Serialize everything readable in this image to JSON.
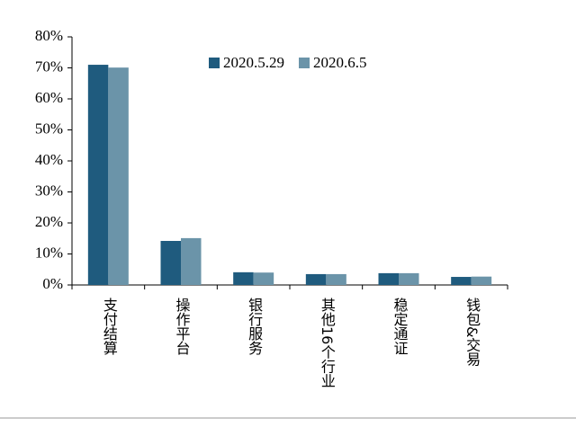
{
  "chart_data": {
    "type": "bar",
    "categories": [
      "支付结算",
      "操作平台",
      "银行服务",
      "其他16个行业",
      "稳定通证",
      "钱包&交易"
    ],
    "series": [
      {
        "name": "2020.5.29",
        "color": "#1f5b7e",
        "values": [
          71.0,
          14.2,
          4.1,
          3.5,
          3.8,
          2.6
        ]
      },
      {
        "name": "2020.6.5",
        "color": "#6b94a9",
        "values": [
          70.1,
          15.1,
          4.0,
          3.5,
          3.8,
          2.7
        ]
      }
    ],
    "ylim": [
      0,
      80
    ],
    "yticks": [
      {
        "value": 0,
        "label": "0%"
      },
      {
        "value": 10,
        "label": "10%"
      },
      {
        "value": 20,
        "label": "20%"
      },
      {
        "value": 30,
        "label": "30%"
      },
      {
        "value": 40,
        "label": "40%"
      },
      {
        "value": 50,
        "label": "50%"
      },
      {
        "value": 60,
        "label": "60%"
      },
      {
        "value": 70,
        "label": "70%"
      },
      {
        "value": 80,
        "label": "80%"
      }
    ],
    "legend": "top-center"
  }
}
